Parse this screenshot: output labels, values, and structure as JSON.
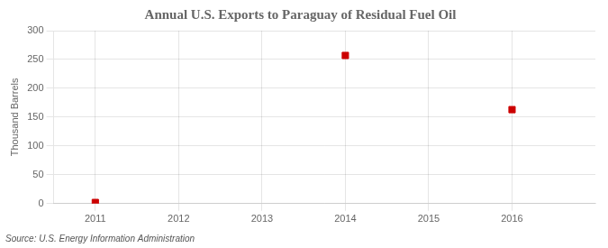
{
  "chart_data": {
    "type": "scatter",
    "title": "Annual U.S. Exports to Paraguay of Residual Fuel Oil",
    "y_label": "Thousand Barrels",
    "annotations": [
      "Source: U.S. Energy Information Administration"
    ],
    "x": [
      2011,
      2014,
      2016
    ],
    "values": [
      2,
      257,
      163
    ],
    "color": "#cc0000",
    "marker": "square",
    "xlim": [
      2010.5,
      2017.0
    ],
    "xticks": [
      2011,
      2012,
      2013,
      2014,
      2015,
      2016
    ],
    "ylim": [
      0,
      300
    ],
    "yticks": [
      0,
      50,
      100,
      150,
      200,
      250,
      300
    ],
    "grid": true
  }
}
